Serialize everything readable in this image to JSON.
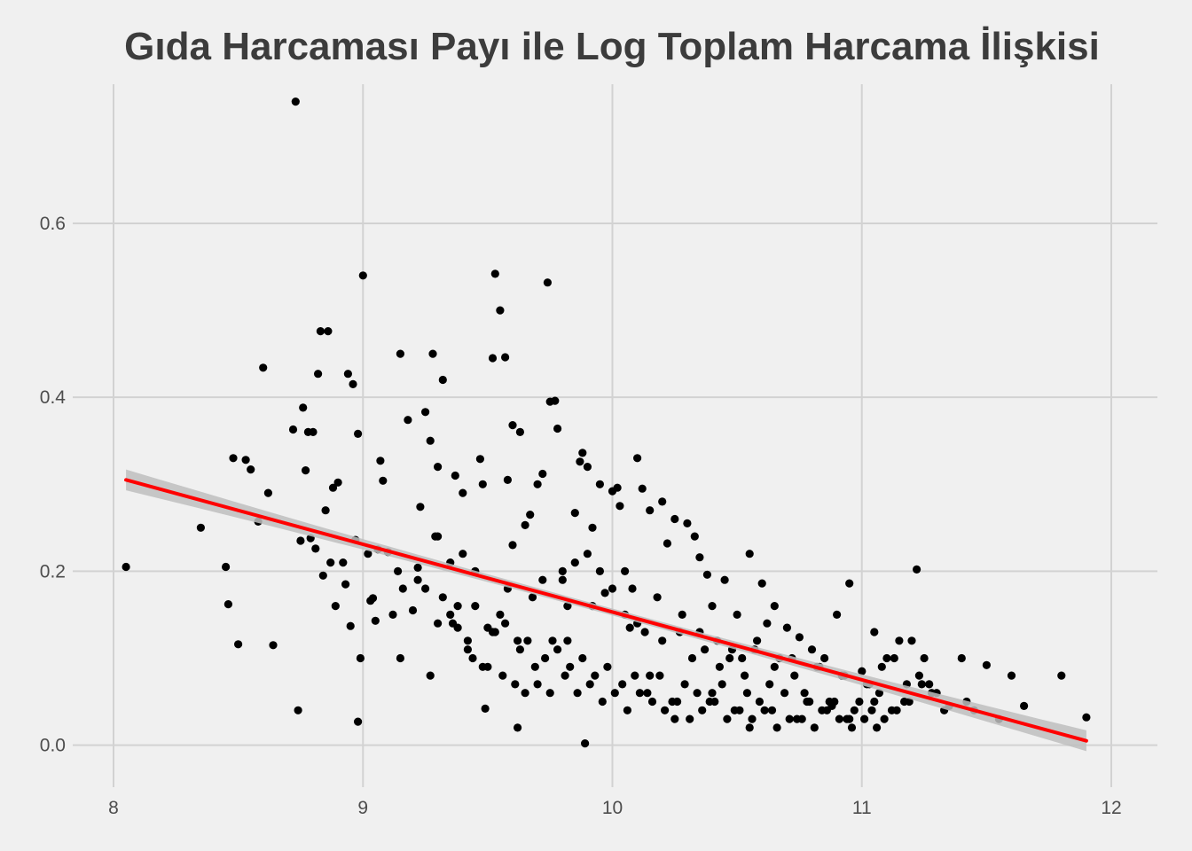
{
  "chart_data": {
    "type": "scatter",
    "title": "Gıda Harcaması Payı ile Log Toplam Harcama İlişkisi",
    "xlabel": "",
    "ylabel": "",
    "xlim": [
      8.0,
      12.0
    ],
    "ylim": [
      -0.03,
      0.76
    ],
    "x_ticks": [
      8,
      9,
      10,
      11,
      12
    ],
    "x_tick_labels": [
      "8",
      "9",
      "10",
      "11",
      "12"
    ],
    "y_ticks": [
      0.0,
      0.2,
      0.4,
      0.6
    ],
    "y_tick_labels": [
      "0.0",
      "0.2",
      "0.4",
      "0.6"
    ],
    "grid": true,
    "legend": "none",
    "colors": {
      "points": "#000000",
      "fit_line": "#FF0000",
      "confidence_band": "#BEBEBE",
      "background": "#F0F0F0",
      "grid": "#D2D2D2"
    },
    "fit": {
      "method": "linear",
      "x_range": [
        8.05,
        11.9
      ],
      "y_start": 0.305,
      "y_end": 0.005,
      "ci_halfwidth_ends": 0.012,
      "ci_halfwidth_mid": 0.004
    },
    "points": {
      "x": [
        8.05,
        8.35,
        8.45,
        8.46,
        8.48,
        8.5,
        8.53,
        8.55,
        8.58,
        8.6,
        8.62,
        8.64,
        8.72,
        8.73,
        8.75,
        8.76,
        8.77,
        8.78,
        8.79,
        8.8,
        8.81,
        8.82,
        8.83,
        8.84,
        8.85,
        8.86,
        8.87,
        8.88,
        8.89,
        8.9,
        8.92,
        8.93,
        8.94,
        8.95,
        8.96,
        8.97,
        8.98,
        8.99,
        9.0,
        9.02,
        9.03,
        9.04,
        9.05,
        9.06,
        9.07,
        9.08,
        9.1,
        9.12,
        9.14,
        9.15,
        9.16,
        9.18,
        9.2,
        9.22,
        9.23,
        9.25,
        9.27,
        9.28,
        9.29,
        9.3,
        9.32,
        9.35,
        9.37,
        9.38,
        9.4,
        9.42,
        9.45,
        9.47,
        9.48,
        9.5,
        9.52,
        9.53,
        9.55,
        9.57,
        9.58,
        9.6,
        9.62,
        9.63,
        9.65,
        9.67,
        9.7,
        9.72,
        9.74,
        9.75,
        9.77,
        9.78,
        9.8,
        9.82,
        9.85,
        9.87,
        9.88,
        9.9,
        9.92,
        9.95,
        9.97,
        10.0,
        10.02,
        10.03,
        10.05,
        10.07,
        10.1,
        10.12,
        10.15,
        10.2,
        10.22,
        10.25,
        10.3,
        10.33,
        10.35,
        10.38,
        10.4,
        10.45,
        10.5,
        10.55,
        10.6,
        10.62,
        10.65,
        10.7,
        10.75,
        10.8,
        10.85,
        10.9,
        10.95,
        11.0,
        11.05,
        11.1,
        11.15,
        11.2,
        11.22,
        11.25,
        11.3,
        11.35,
        11.4,
        11.45,
        11.5,
        11.55,
        11.6,
        11.65,
        11.8,
        11.9,
        8.74,
        8.98,
        9.49,
        9.62,
        9.15,
        9.27,
        9.48,
        9.53,
        9.76,
        9.3,
        9.44,
        9.82,
        9.89,
        10.25,
        10.15,
        10.4,
        10.55,
        10.78,
        10.88,
        10.95,
        11.05,
        11.12,
        9.65,
        9.7,
        9.55,
        9.58,
        9.45,
        9.36,
        9.42,
        9.68,
        9.72,
        9.9,
        9.95,
        10.08,
        10.18,
        10.28,
        10.35,
        10.42,
        10.48,
        10.52,
        10.58,
        10.65,
        10.72,
        10.82,
        10.92,
        11.02,
        11.08,
        11.18,
        11.28,
        9.3,
        9.35,
        9.4,
        9.6,
        9.8,
        9.85,
        9.92,
        10.0,
        10.05,
        10.1,
        10.13,
        10.2,
        10.27,
        10.32,
        10.37,
        10.43,
        10.47,
        10.53,
        10.57,
        10.63,
        10.67,
        10.73,
        10.77,
        10.83,
        10.87,
        10.93,
        10.97,
        11.03,
        11.07,
        11.13,
        11.17,
        11.23,
        11.27,
        11.33,
        11.42,
        9.22,
        9.25,
        9.32,
        9.38,
        9.52,
        9.57,
        9.63,
        9.66,
        9.73,
        9.78,
        9.83,
        9.88,
        9.93,
        9.98,
        10.04,
        10.09,
        10.14,
        10.19,
        10.24,
        10.29,
        10.34,
        10.39,
        10.44,
        10.49,
        10.54,
        10.59,
        10.64,
        10.69,
        10.74,
        10.79,
        10.84,
        10.89,
        10.94,
        10.99,
        11.04,
        11.09,
        11.14,
        11.19,
        11.24,
        9.5,
        9.56,
        9.61,
        9.69,
        9.75,
        9.81,
        9.86,
        9.91,
        9.96,
        10.01,
        10.06,
        10.11,
        10.16,
        10.21,
        10.26,
        10.31,
        10.36,
        10.41,
        10.46,
        10.51,
        10.56,
        10.61,
        10.66,
        10.71,
        10.76,
        10.81,
        10.86,
        10.91,
        10.96,
        11.01,
        11.06
      ],
      "y": [
        0.205,
        0.25,
        0.205,
        0.162,
        0.33,
        0.116,
        0.328,
        0.317,
        0.257,
        0.434,
        0.29,
        0.115,
        0.363,
        0.74,
        0.235,
        0.388,
        0.316,
        0.36,
        0.238,
        0.36,
        0.226,
        0.427,
        0.476,
        0.195,
        0.27,
        0.476,
        0.21,
        0.296,
        0.16,
        0.302,
        0.21,
        0.185,
        0.427,
        0.137,
        0.415,
        0.236,
        0.358,
        0.1,
        0.54,
        0.22,
        0.166,
        0.169,
        0.143,
        0.225,
        0.327,
        0.304,
        0.222,
        0.15,
        0.2,
        0.45,
        0.18,
        0.374,
        0.155,
        0.204,
        0.274,
        0.383,
        0.35,
        0.45,
        0.24,
        0.32,
        0.42,
        0.15,
        0.31,
        0.135,
        0.29,
        0.11,
        0.2,
        0.329,
        0.3,
        0.135,
        0.445,
        0.542,
        0.5,
        0.446,
        0.305,
        0.368,
        0.12,
        0.36,
        0.253,
        0.265,
        0.3,
        0.312,
        0.532,
        0.395,
        0.396,
        0.364,
        0.2,
        0.12,
        0.267,
        0.326,
        0.336,
        0.32,
        0.25,
        0.3,
        0.175,
        0.292,
        0.296,
        0.275,
        0.2,
        0.135,
        0.33,
        0.295,
        0.27,
        0.28,
        0.232,
        0.26,
        0.255,
        0.24,
        0.216,
        0.196,
        0.16,
        0.19,
        0.15,
        0.22,
        0.186,
        0.14,
        0.16,
        0.135,
        0.124,
        0.11,
        0.1,
        0.15,
        0.186,
        0.085,
        0.13,
        0.1,
        0.12,
        0.12,
        0.202,
        0.1,
        0.06,
        0.045,
        0.1,
        0.04,
        0.092,
        0.03,
        0.08,
        0.045,
        0.08,
        0.032,
        0.04,
        0.027,
        0.042,
        0.02,
        0.1,
        0.08,
        0.09,
        0.13,
        0.12,
        0.14,
        0.1,
        0.16,
        0.002,
        0.03,
        0.08,
        0.06,
        0.02,
        0.05,
        0.045,
        0.03,
        0.05,
        0.04,
        0.06,
        0.07,
        0.15,
        0.18,
        0.16,
        0.14,
        0.12,
        0.17,
        0.19,
        0.22,
        0.2,
        0.18,
        0.17,
        0.15,
        0.13,
        0.12,
        0.11,
        0.1,
        0.12,
        0.09,
        0.1,
        0.09,
        0.08,
        0.07,
        0.09,
        0.07,
        0.06,
        0.24,
        0.21,
        0.22,
        0.23,
        0.19,
        0.21,
        0.16,
        0.18,
        0.15,
        0.14,
        0.13,
        0.12,
        0.13,
        0.1,
        0.11,
        0.09,
        0.1,
        0.08,
        0.11,
        0.07,
        0.1,
        0.08,
        0.06,
        0.09,
        0.05,
        0.08,
        0.04,
        0.07,
        0.06,
        0.1,
        0.05,
        0.08,
        0.07,
        0.04,
        0.05,
        0.19,
        0.18,
        0.17,
        0.16,
        0.13,
        0.14,
        0.11,
        0.12,
        0.1,
        0.11,
        0.09,
        0.1,
        0.08,
        0.09,
        0.07,
        0.08,
        0.06,
        0.08,
        0.05,
        0.07,
        0.06,
        0.05,
        0.07,
        0.04,
        0.06,
        0.05,
        0.04,
        0.06,
        0.03,
        0.05,
        0.04,
        0.05,
        0.03,
        0.05,
        0.04,
        0.03,
        0.04,
        0.05,
        0.07,
        0.09,
        0.08,
        0.07,
        0.09,
        0.06,
        0.08,
        0.06,
        0.07,
        0.05,
        0.06,
        0.04,
        0.06,
        0.05,
        0.04,
        0.05,
        0.03,
        0.04,
        0.05,
        0.03,
        0.04,
        0.03,
        0.04,
        0.02,
        0.03,
        0.03,
        0.02,
        0.04,
        0.03,
        0.02,
        0.03,
        0.02
      ]
    }
  }
}
